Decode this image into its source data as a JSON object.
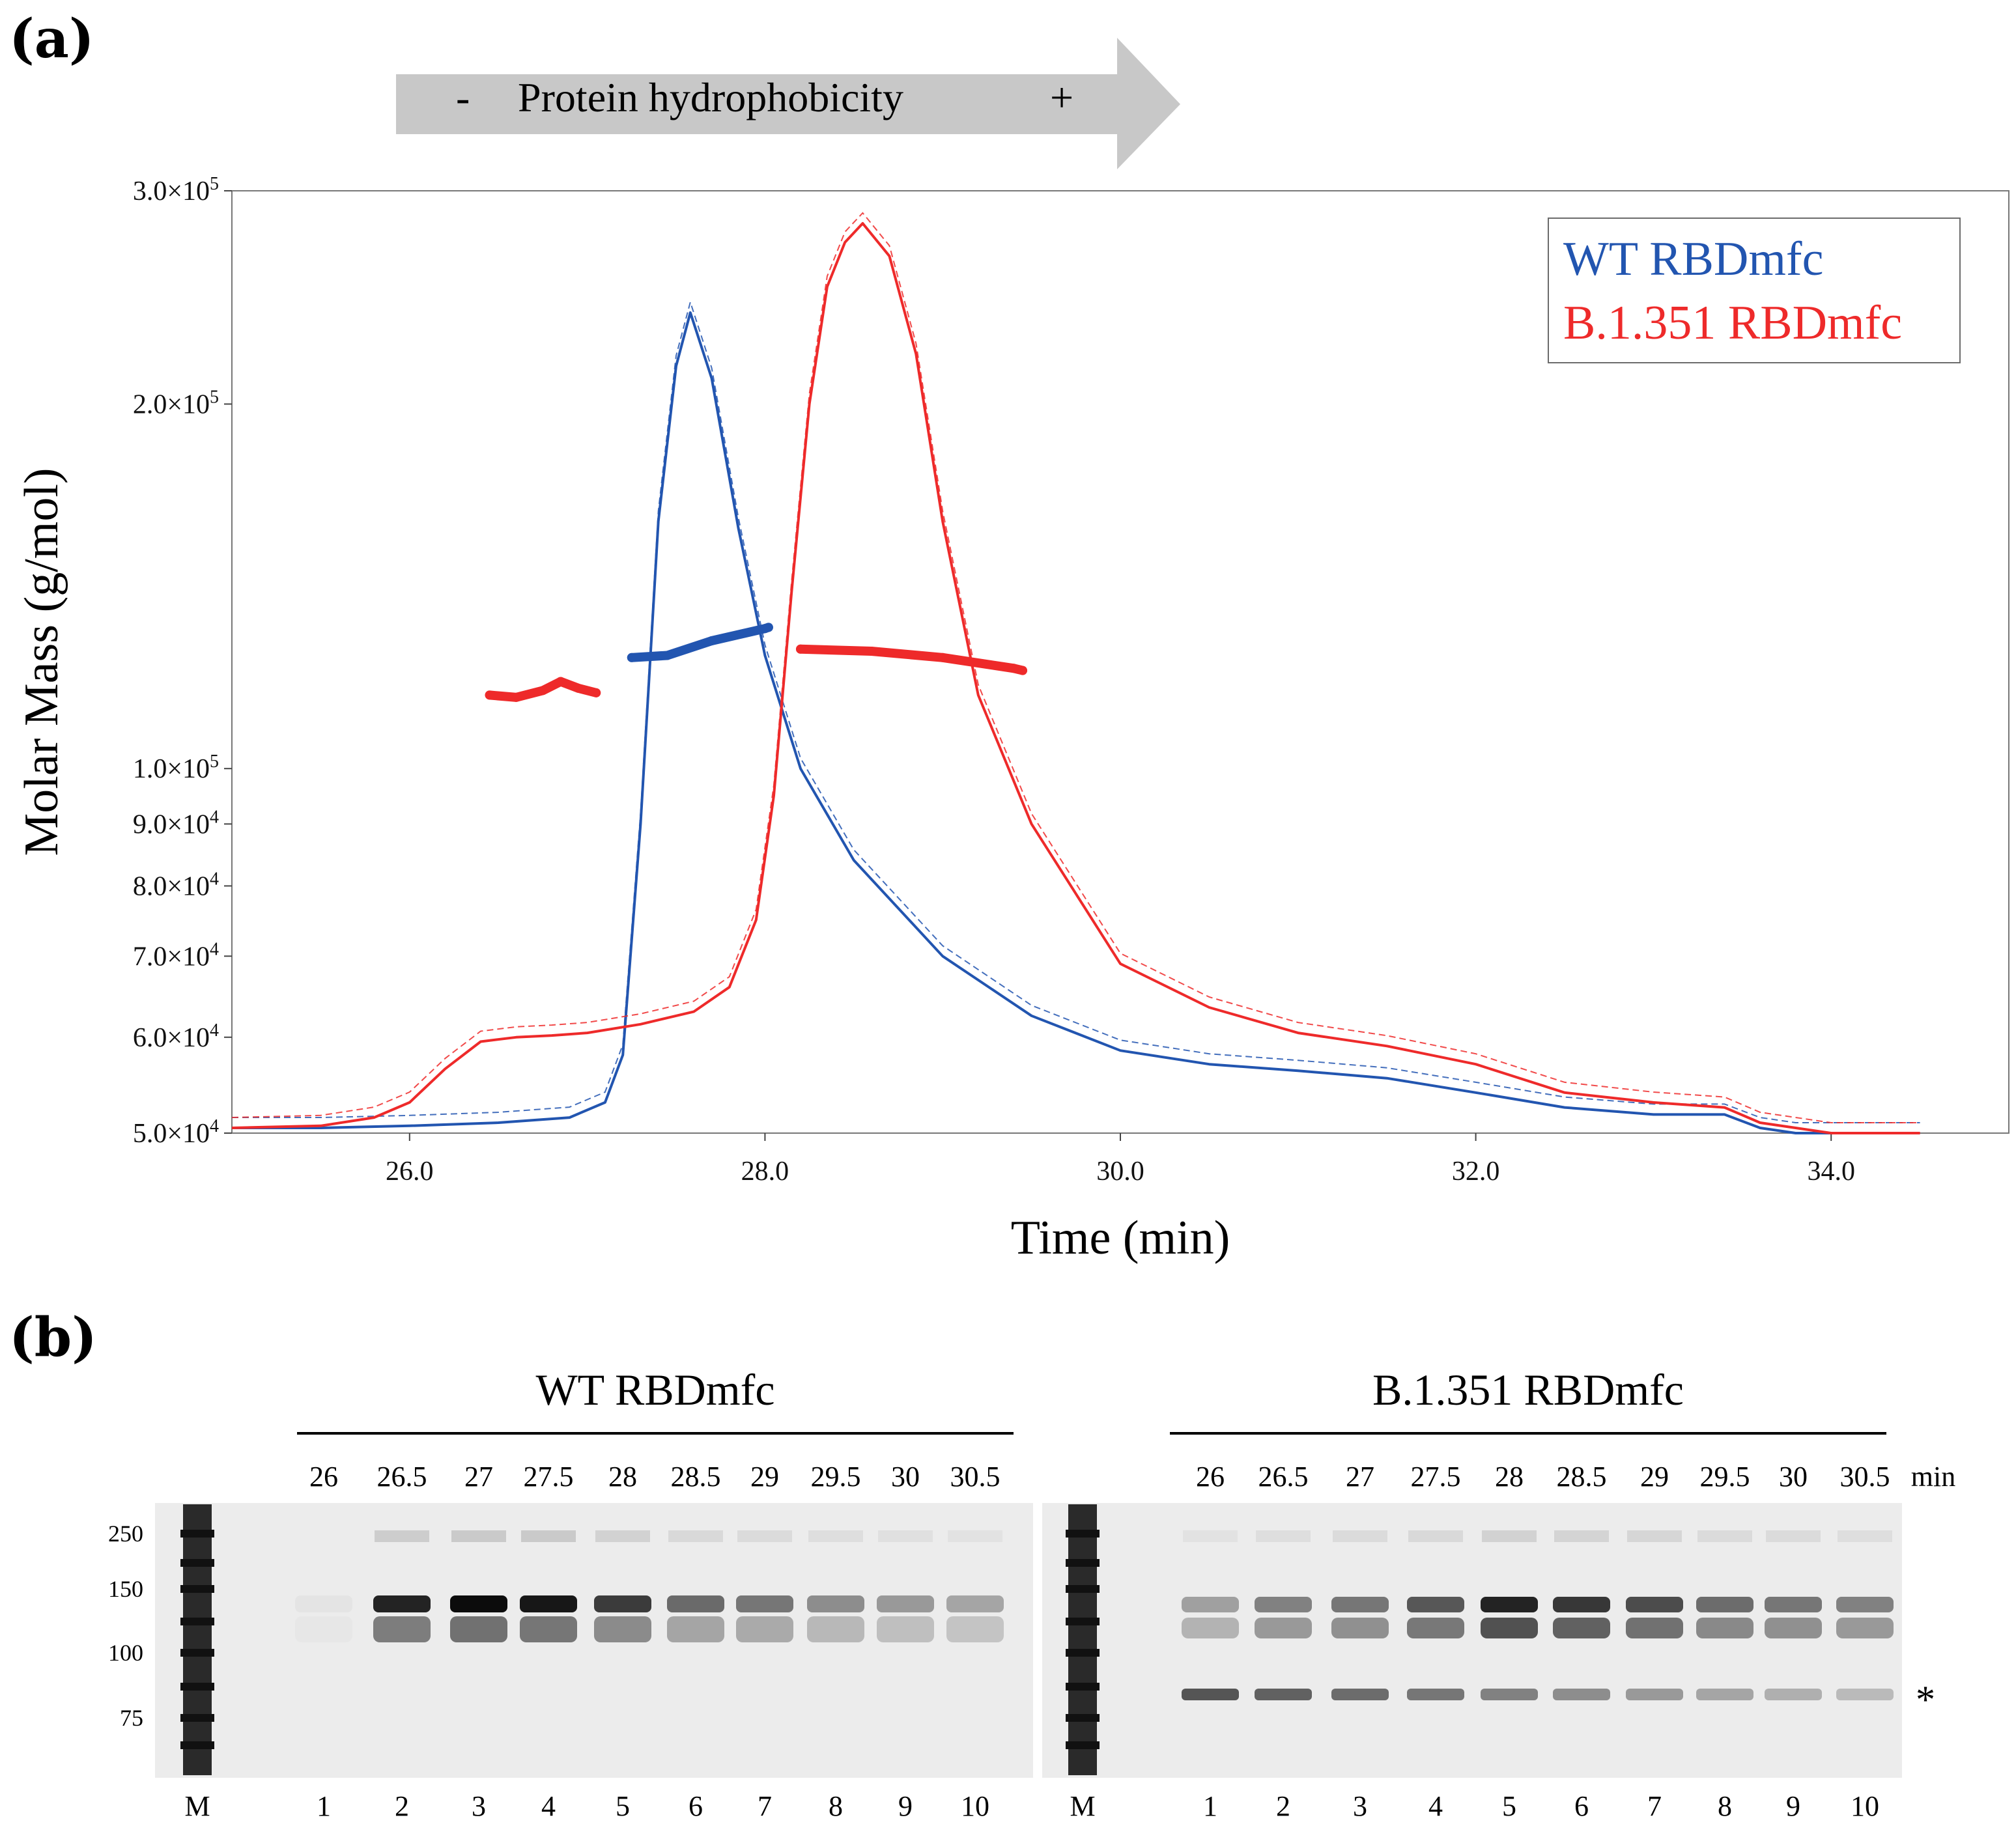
{
  "panel_a": {
    "label": "(a)",
    "arrow": {
      "minus": "-",
      "text": "Protein hydrophobicity",
      "plus": "+"
    }
  },
  "panel_b": {
    "label": "(b)",
    "gel_left": {
      "title": "WT RBDmfc",
      "times": [
        "26",
        "26.5",
        "27",
        "27.5",
        "28",
        "28.5",
        "29",
        "29.5",
        "30",
        "30.5"
      ],
      "lanes": [
        "M",
        "1",
        "2",
        "3",
        "4",
        "5",
        "6",
        "7",
        "8",
        "9",
        "10"
      ],
      "markers": [
        "250",
        "150",
        "100",
        "75"
      ],
      "band_intensity": [
        0.03,
        0.85,
        0.95,
        0.9,
        0.75,
        0.55,
        0.5,
        0.4,
        0.35,
        0.3
      ]
    },
    "gel_right": {
      "title": "B.1.351 RBDmfc",
      "times": [
        "26",
        "26.5",
        "27",
        "27.5",
        "28",
        "28.5",
        "29",
        "29.5",
        "30",
        "30.5"
      ],
      "unit": "min",
      "lanes": [
        "M",
        "1",
        "2",
        "3",
        "4",
        "5",
        "6",
        "7",
        "8",
        "9",
        "10"
      ],
      "asterisk": "*",
      "band_intensity": [
        0.35,
        0.5,
        0.55,
        0.7,
        0.95,
        0.85,
        0.75,
        0.6,
        0.55,
        0.5
      ]
    }
  },
  "colors": {
    "wt": "#2255b0",
    "b1351": "#ee2a2a",
    "arrow": "#c8c8c8"
  },
  "chart_data": {
    "type": "line",
    "ylabel": "Molar Mass (g/mol)",
    "xlabel": "Time (min)",
    "xlim": [
      25.0,
      35.0
    ],
    "ylim": [
      50000,
      300000
    ],
    "yscale": "log",
    "xticks": [
      26,
      28,
      30,
      32,
      34
    ],
    "xtick_labels": [
      "26.0",
      "28.0",
      "30.0",
      "32.0",
      "34.0"
    ],
    "yticks": [
      {
        "v": 300000,
        "m": "3.0",
        "e": "5"
      },
      {
        "v": 200000,
        "m": "2.0",
        "e": "5"
      },
      {
        "v": 100000,
        "m": "1.0",
        "e": "5"
      },
      {
        "v": 90000,
        "m": "9.0",
        "e": "4"
      },
      {
        "v": 80000,
        "m": "8.0",
        "e": "4"
      },
      {
        "v": 70000,
        "m": "7.0",
        "e": "4"
      },
      {
        "v": 60000,
        "m": "6.0",
        "e": "4"
      },
      {
        "v": 50000,
        "m": "5.0",
        "e": "4"
      }
    ],
    "ytick_times": "×10",
    "legend": {
      "position": "top-right",
      "entries": [
        "WT RBDmfc",
        "B.1.351 RBDmfc"
      ]
    },
    "series": [
      {
        "name": "WT RBDmfc",
        "kind": "trace",
        "x": [
          25.0,
          25.5,
          26.0,
          26.5,
          26.9,
          27.1,
          27.2,
          27.3,
          27.4,
          27.5,
          27.58,
          27.7,
          27.85,
          28.0,
          28.2,
          28.5,
          29.0,
          29.5,
          30.0,
          30.5,
          31.0,
          31.5,
          32.0,
          32.5,
          33.0,
          33.4,
          33.6,
          33.8,
          34.0,
          34.5
        ],
        "y": [
          50500,
          50500,
          50700,
          51000,
          51500,
          53000,
          58000,
          90000,
          160000,
          215000,
          238000,
          210000,
          158000,
          124000,
          100000,
          84000,
          70000,
          62500,
          58500,
          57000,
          56300,
          55500,
          54000,
          52500,
          51800,
          51800,
          50500,
          50000,
          50000,
          50000
        ]
      },
      {
        "name": "B.1.351 RBDmfc",
        "kind": "trace",
        "x": [
          25.0,
          25.5,
          25.8,
          26.0,
          26.2,
          26.4,
          26.6,
          26.8,
          27.0,
          27.3,
          27.6,
          27.8,
          27.95,
          28.05,
          28.15,
          28.25,
          28.35,
          28.45,
          28.55,
          28.7,
          28.85,
          29.0,
          29.2,
          29.5,
          30.0,
          30.5,
          31.0,
          31.5,
          32.0,
          32.5,
          33.0,
          33.4,
          33.6,
          33.8,
          34.0,
          34.5
        ],
        "y": [
          50500,
          50700,
          51500,
          53000,
          56500,
          59500,
          60000,
          60200,
          60500,
          61500,
          63000,
          66000,
          75000,
          95000,
          140000,
          200000,
          250000,
          272000,
          282000,
          265000,
          220000,
          160000,
          115000,
          90000,
          69000,
          63500,
          60500,
          59000,
          57000,
          54000,
          53000,
          52500,
          51000,
          50500,
          50000,
          50000
        ]
      },
      {
        "name": "WT RBDmfc molar mass",
        "kind": "mass",
        "x": [
          27.25,
          27.45,
          27.7,
          28.0,
          28.02
        ],
        "y": [
          123500,
          124000,
          127500,
          130500,
          130800
        ]
      },
      {
        "name": "B.1.351 RBDmfc molar mass (pre-peak)",
        "kind": "mass",
        "x": [
          26.45,
          26.6,
          26.75,
          26.85,
          26.95,
          27.05
        ],
        "y": [
          115000,
          114500,
          116000,
          118000,
          116500,
          115500
        ]
      },
      {
        "name": "B.1.351 RBDmfc molar mass",
        "kind": "mass",
        "x": [
          28.2,
          28.6,
          29.0,
          29.4,
          29.45
        ],
        "y": [
          125500,
          125000,
          123500,
          121000,
          120500
        ]
      }
    ]
  }
}
